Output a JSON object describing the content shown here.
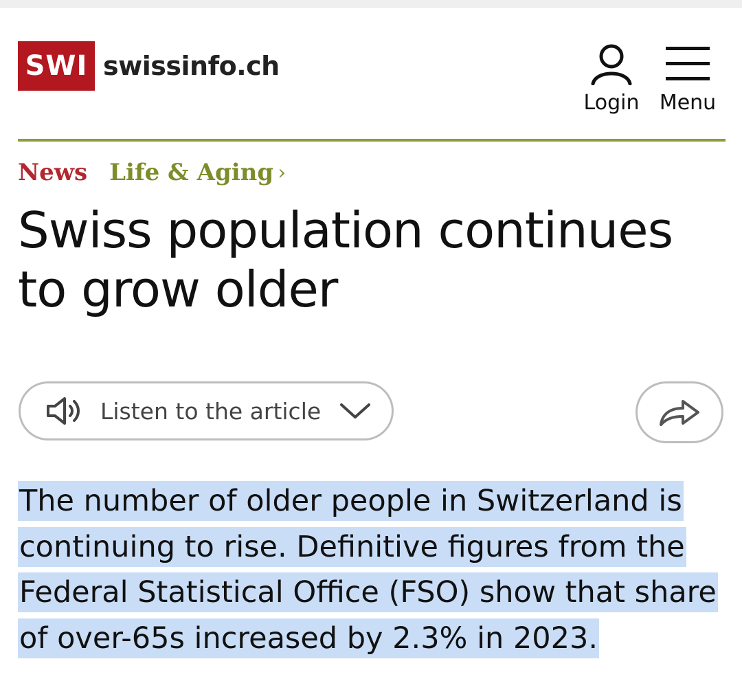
{
  "header": {
    "logo_badge": "SWI",
    "logo_text": "swissinfo.ch",
    "login_label": "Login",
    "menu_label": "Menu",
    "brand_color": "#b3171f",
    "rule_color": "#8f9a3a"
  },
  "breadcrumb": {
    "section": "News",
    "topic": "Life & Aging",
    "chevron": "›",
    "section_color": "#b3272f",
    "topic_color": "#7f8c2a"
  },
  "article": {
    "title": "Swiss population continues to grow older",
    "listen_label": "Listen to the article",
    "lead": "The number of older people in Switzerland is continuing to rise. Definitive figures from the Federal Statistical Office (FSO) show that share of over-65s increased by 2.3% in 2023.",
    "selection_color": "#c9ddf7"
  }
}
